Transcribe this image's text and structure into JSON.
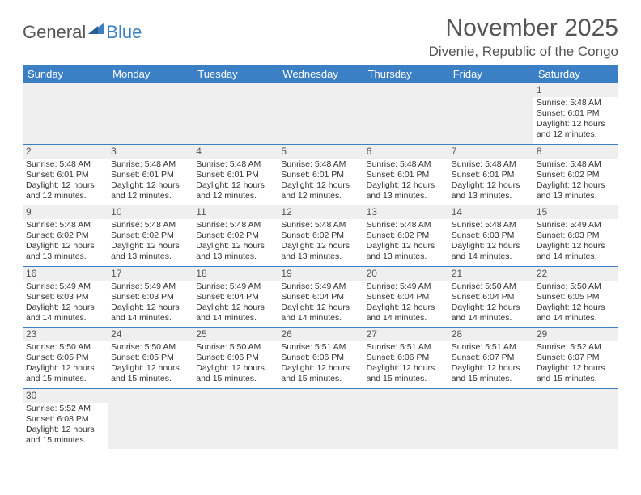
{
  "logo": {
    "part1": "General",
    "part2": "Blue"
  },
  "title": "November 2025",
  "location": "Divenie, Republic of the Congo",
  "header_bg": "#3b7fc4",
  "columns": [
    "Sunday",
    "Monday",
    "Tuesday",
    "Wednesday",
    "Thursday",
    "Friday",
    "Saturday"
  ],
  "weeks": [
    [
      null,
      null,
      null,
      null,
      null,
      null,
      {
        "n": "1",
        "sr": "5:48 AM",
        "ss": "6:01 PM",
        "dl": "12 hours and 12 minutes."
      }
    ],
    [
      {
        "n": "2",
        "sr": "5:48 AM",
        "ss": "6:01 PM",
        "dl": "12 hours and 12 minutes."
      },
      {
        "n": "3",
        "sr": "5:48 AM",
        "ss": "6:01 PM",
        "dl": "12 hours and 12 minutes."
      },
      {
        "n": "4",
        "sr": "5:48 AM",
        "ss": "6:01 PM",
        "dl": "12 hours and 12 minutes."
      },
      {
        "n": "5",
        "sr": "5:48 AM",
        "ss": "6:01 PM",
        "dl": "12 hours and 12 minutes."
      },
      {
        "n": "6",
        "sr": "5:48 AM",
        "ss": "6:01 PM",
        "dl": "12 hours and 13 minutes."
      },
      {
        "n": "7",
        "sr": "5:48 AM",
        "ss": "6:01 PM",
        "dl": "12 hours and 13 minutes."
      },
      {
        "n": "8",
        "sr": "5:48 AM",
        "ss": "6:02 PM",
        "dl": "12 hours and 13 minutes."
      }
    ],
    [
      {
        "n": "9",
        "sr": "5:48 AM",
        "ss": "6:02 PM",
        "dl": "12 hours and 13 minutes."
      },
      {
        "n": "10",
        "sr": "5:48 AM",
        "ss": "6:02 PM",
        "dl": "12 hours and 13 minutes."
      },
      {
        "n": "11",
        "sr": "5:48 AM",
        "ss": "6:02 PM",
        "dl": "12 hours and 13 minutes."
      },
      {
        "n": "12",
        "sr": "5:48 AM",
        "ss": "6:02 PM",
        "dl": "12 hours and 13 minutes."
      },
      {
        "n": "13",
        "sr": "5:48 AM",
        "ss": "6:02 PM",
        "dl": "12 hours and 13 minutes."
      },
      {
        "n": "14",
        "sr": "5:48 AM",
        "ss": "6:03 PM",
        "dl": "12 hours and 14 minutes."
      },
      {
        "n": "15",
        "sr": "5:49 AM",
        "ss": "6:03 PM",
        "dl": "12 hours and 14 minutes."
      }
    ],
    [
      {
        "n": "16",
        "sr": "5:49 AM",
        "ss": "6:03 PM",
        "dl": "12 hours and 14 minutes."
      },
      {
        "n": "17",
        "sr": "5:49 AM",
        "ss": "6:03 PM",
        "dl": "12 hours and 14 minutes."
      },
      {
        "n": "18",
        "sr": "5:49 AM",
        "ss": "6:04 PM",
        "dl": "12 hours and 14 minutes."
      },
      {
        "n": "19",
        "sr": "5:49 AM",
        "ss": "6:04 PM",
        "dl": "12 hours and 14 minutes."
      },
      {
        "n": "20",
        "sr": "5:49 AM",
        "ss": "6:04 PM",
        "dl": "12 hours and 14 minutes."
      },
      {
        "n": "21",
        "sr": "5:50 AM",
        "ss": "6:04 PM",
        "dl": "12 hours and 14 minutes."
      },
      {
        "n": "22",
        "sr": "5:50 AM",
        "ss": "6:05 PM",
        "dl": "12 hours and 14 minutes."
      }
    ],
    [
      {
        "n": "23",
        "sr": "5:50 AM",
        "ss": "6:05 PM",
        "dl": "12 hours and 15 minutes."
      },
      {
        "n": "24",
        "sr": "5:50 AM",
        "ss": "6:05 PM",
        "dl": "12 hours and 15 minutes."
      },
      {
        "n": "25",
        "sr": "5:50 AM",
        "ss": "6:06 PM",
        "dl": "12 hours and 15 minutes."
      },
      {
        "n": "26",
        "sr": "5:51 AM",
        "ss": "6:06 PM",
        "dl": "12 hours and 15 minutes."
      },
      {
        "n": "27",
        "sr": "5:51 AM",
        "ss": "6:06 PM",
        "dl": "12 hours and 15 minutes."
      },
      {
        "n": "28",
        "sr": "5:51 AM",
        "ss": "6:07 PM",
        "dl": "12 hours and 15 minutes."
      },
      {
        "n": "29",
        "sr": "5:52 AM",
        "ss": "6:07 PM",
        "dl": "12 hours and 15 minutes."
      }
    ],
    [
      {
        "n": "30",
        "sr": "5:52 AM",
        "ss": "6:08 PM",
        "dl": "12 hours and 15 minutes."
      },
      null,
      null,
      null,
      null,
      null,
      null
    ]
  ],
  "labels": {
    "sunrise": "Sunrise:",
    "sunset": "Sunset:",
    "daylight": "Daylight:"
  }
}
